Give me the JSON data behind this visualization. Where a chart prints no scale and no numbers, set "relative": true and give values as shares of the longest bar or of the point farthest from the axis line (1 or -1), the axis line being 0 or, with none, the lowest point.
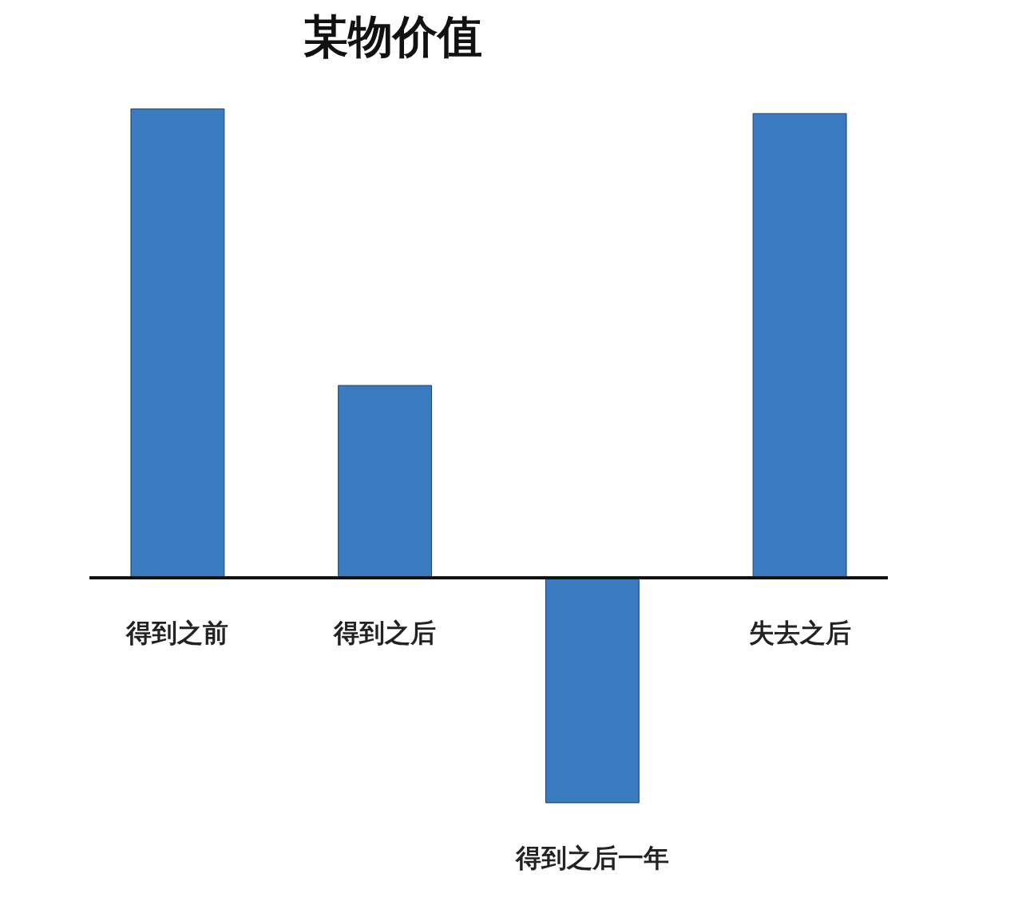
{
  "chart_data": {
    "type": "bar",
    "title": "某物价值",
    "relative": true,
    "categories": [
      "得到之前",
      "得到之后",
      "得到之后一年",
      "失去之后"
    ],
    "values": [
      1,
      0.41,
      -0.48,
      0.99
    ],
    "color": "#3a7bbf"
  }
}
